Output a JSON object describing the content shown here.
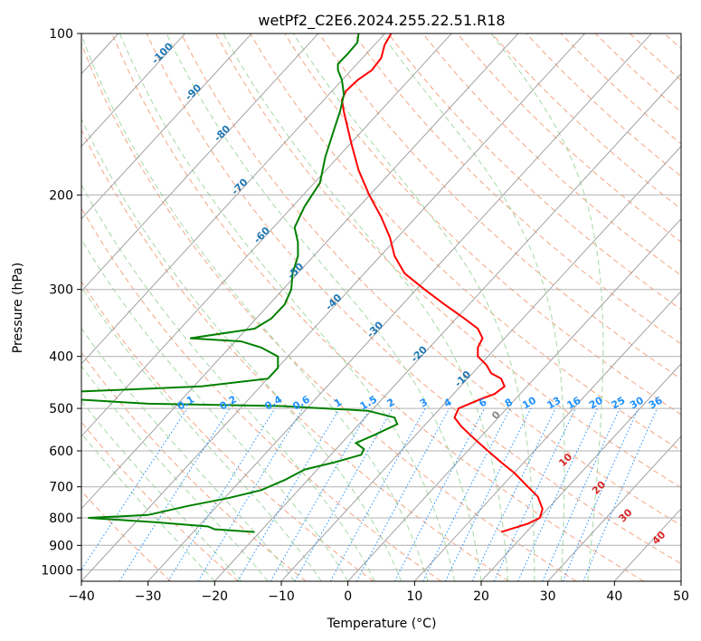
{
  "chart_data": {
    "type": "line",
    "subtype": "skew-t log-p",
    "title": "wetPf2_C2E6.2024.255.22.51.R18",
    "xlabel": "Temperature (°C)",
    "ylabel": "Pressure (hPa)",
    "xlim": [
      -40,
      50
    ],
    "ylim": [
      1050,
      100
    ],
    "y_scale": "log",
    "grid": true,
    "x_ticks": [
      -40,
      -30,
      -20,
      -10,
      0,
      10,
      20,
      30,
      40,
      50
    ],
    "x_tick_labels": [
      "−40",
      "−30",
      "−20",
      "−10",
      "0",
      "10",
      "20",
      "30",
      "40",
      "50"
    ],
    "y_ticks": [
      100,
      200,
      300,
      400,
      500,
      600,
      700,
      800,
      900,
      1000
    ],
    "y_tick_labels": [
      "100",
      "200",
      "300",
      "400",
      "500",
      "600",
      "700",
      "800",
      "900",
      "1000"
    ],
    "colors": {
      "temperature": "#ff0000",
      "dewpoint": "#008000",
      "isotherm": "#999999",
      "dry_adiabat": "#f4a582",
      "moist_adiabat": "#a6d8a6",
      "mixing_ratio": "#1e90ff",
      "isotherm_label": "#1f77b4",
      "adiabat_label": "#d62728",
      "wetbulb_label": "#888888"
    },
    "series": [
      {
        "key": "temperature",
        "points": [
          [
            23,
            850
          ],
          [
            27,
            820
          ],
          [
            28.8,
            800
          ],
          [
            29.2,
            770
          ],
          [
            28.5,
            730
          ],
          [
            27,
            700
          ],
          [
            25,
            660
          ],
          [
            23,
            630
          ],
          [
            21,
            600
          ],
          [
            19,
            570
          ],
          [
            17,
            540
          ],
          [
            16,
            520
          ],
          [
            16.6,
            500
          ],
          [
            20,
            480
          ],
          [
            22,
            470
          ],
          [
            23.5,
            455
          ],
          [
            23,
            440
          ],
          [
            21.5,
            430
          ],
          [
            20.8,
            415
          ],
          [
            19.5,
            400
          ],
          [
            19.5,
            385
          ],
          [
            20.2,
            370
          ],
          [
            19.5,
            355
          ],
          [
            17.5,
            340
          ],
          [
            14.5,
            320
          ],
          [
            11.5,
            300
          ],
          [
            8.5,
            280
          ],
          [
            7,
            260
          ],
          [
            6.3,
            240
          ],
          [
            5,
            220
          ],
          [
            3.2,
            200
          ],
          [
            1.6,
            180
          ],
          [
            0.5,
            160
          ],
          [
            -0.6,
            140
          ],
          [
            -0.9,
            133
          ],
          [
            -0.3,
            128
          ],
          [
            1.5,
            122
          ],
          [
            3.6,
            117
          ],
          [
            5,
            111
          ],
          [
            5.5,
            105
          ],
          [
            6.5,
            100
          ]
        ]
      },
      {
        "key": "dewpoint",
        "points": [
          [
            -14,
            850
          ],
          [
            -20,
            840
          ],
          [
            -21,
            830
          ],
          [
            -29,
            815
          ],
          [
            -39,
            800
          ],
          [
            -30,
            790
          ],
          [
            -24,
            760
          ],
          [
            -18,
            735
          ],
          [
            -13,
            710
          ],
          [
            -9.5,
            680
          ],
          [
            -6.5,
            650
          ],
          [
            -2,
            630
          ],
          [
            2,
            610
          ],
          [
            2.4,
            595
          ],
          [
            1.2,
            580
          ],
          [
            4,
            560
          ],
          [
            7.4,
            535
          ],
          [
            7,
            520
          ],
          [
            3,
            505
          ],
          [
            -10,
            495
          ],
          [
            -30,
            490
          ],
          [
            -42,
            480
          ],
          [
            -40,
            465
          ],
          [
            -22,
            455
          ],
          [
            -12,
            440
          ],
          [
            -10.5,
            420
          ],
          [
            -10.5,
            400
          ],
          [
            -13,
            385
          ],
          [
            -16,
            375
          ],
          [
            -23.7,
            370
          ],
          [
            -14,
            355
          ],
          [
            -11.5,
            340
          ],
          [
            -9.5,
            320
          ],
          [
            -8.5,
            300
          ],
          [
            -8.3,
            280
          ],
          [
            -7.5,
            260
          ],
          [
            -7.5,
            245
          ],
          [
            -8,
            230
          ],
          [
            -6.5,
            210
          ],
          [
            -4.2,
            190
          ],
          [
            -3.4,
            170
          ],
          [
            -2,
            150
          ],
          [
            -1.2,
            140
          ],
          [
            -0.6,
            130
          ],
          [
            -0.9,
            122
          ],
          [
            -1.5,
            117
          ],
          [
            -1.5,
            114
          ],
          [
            0,
            109
          ],
          [
            1.4,
            104
          ],
          [
            1.6,
            100
          ]
        ]
      }
    ],
    "isotherm_labels": [
      "-100",
      "-90",
      "-80",
      "-70",
      "-60",
      "-50",
      "-40",
      "-30",
      "-20",
      "-10",
      "0",
      "10",
      "20",
      "30",
      "40"
    ],
    "mixing_ratio_labels": [
      "0.1",
      "0.2",
      "0.4",
      "0.6",
      "1",
      "1.5",
      "2",
      "3",
      "4",
      "6",
      "8",
      "10",
      "13",
      "16",
      "20",
      "25",
      "30",
      "36"
    ],
    "adiabat_labels": [
      "10",
      "20",
      "30",
      "40"
    ]
  }
}
